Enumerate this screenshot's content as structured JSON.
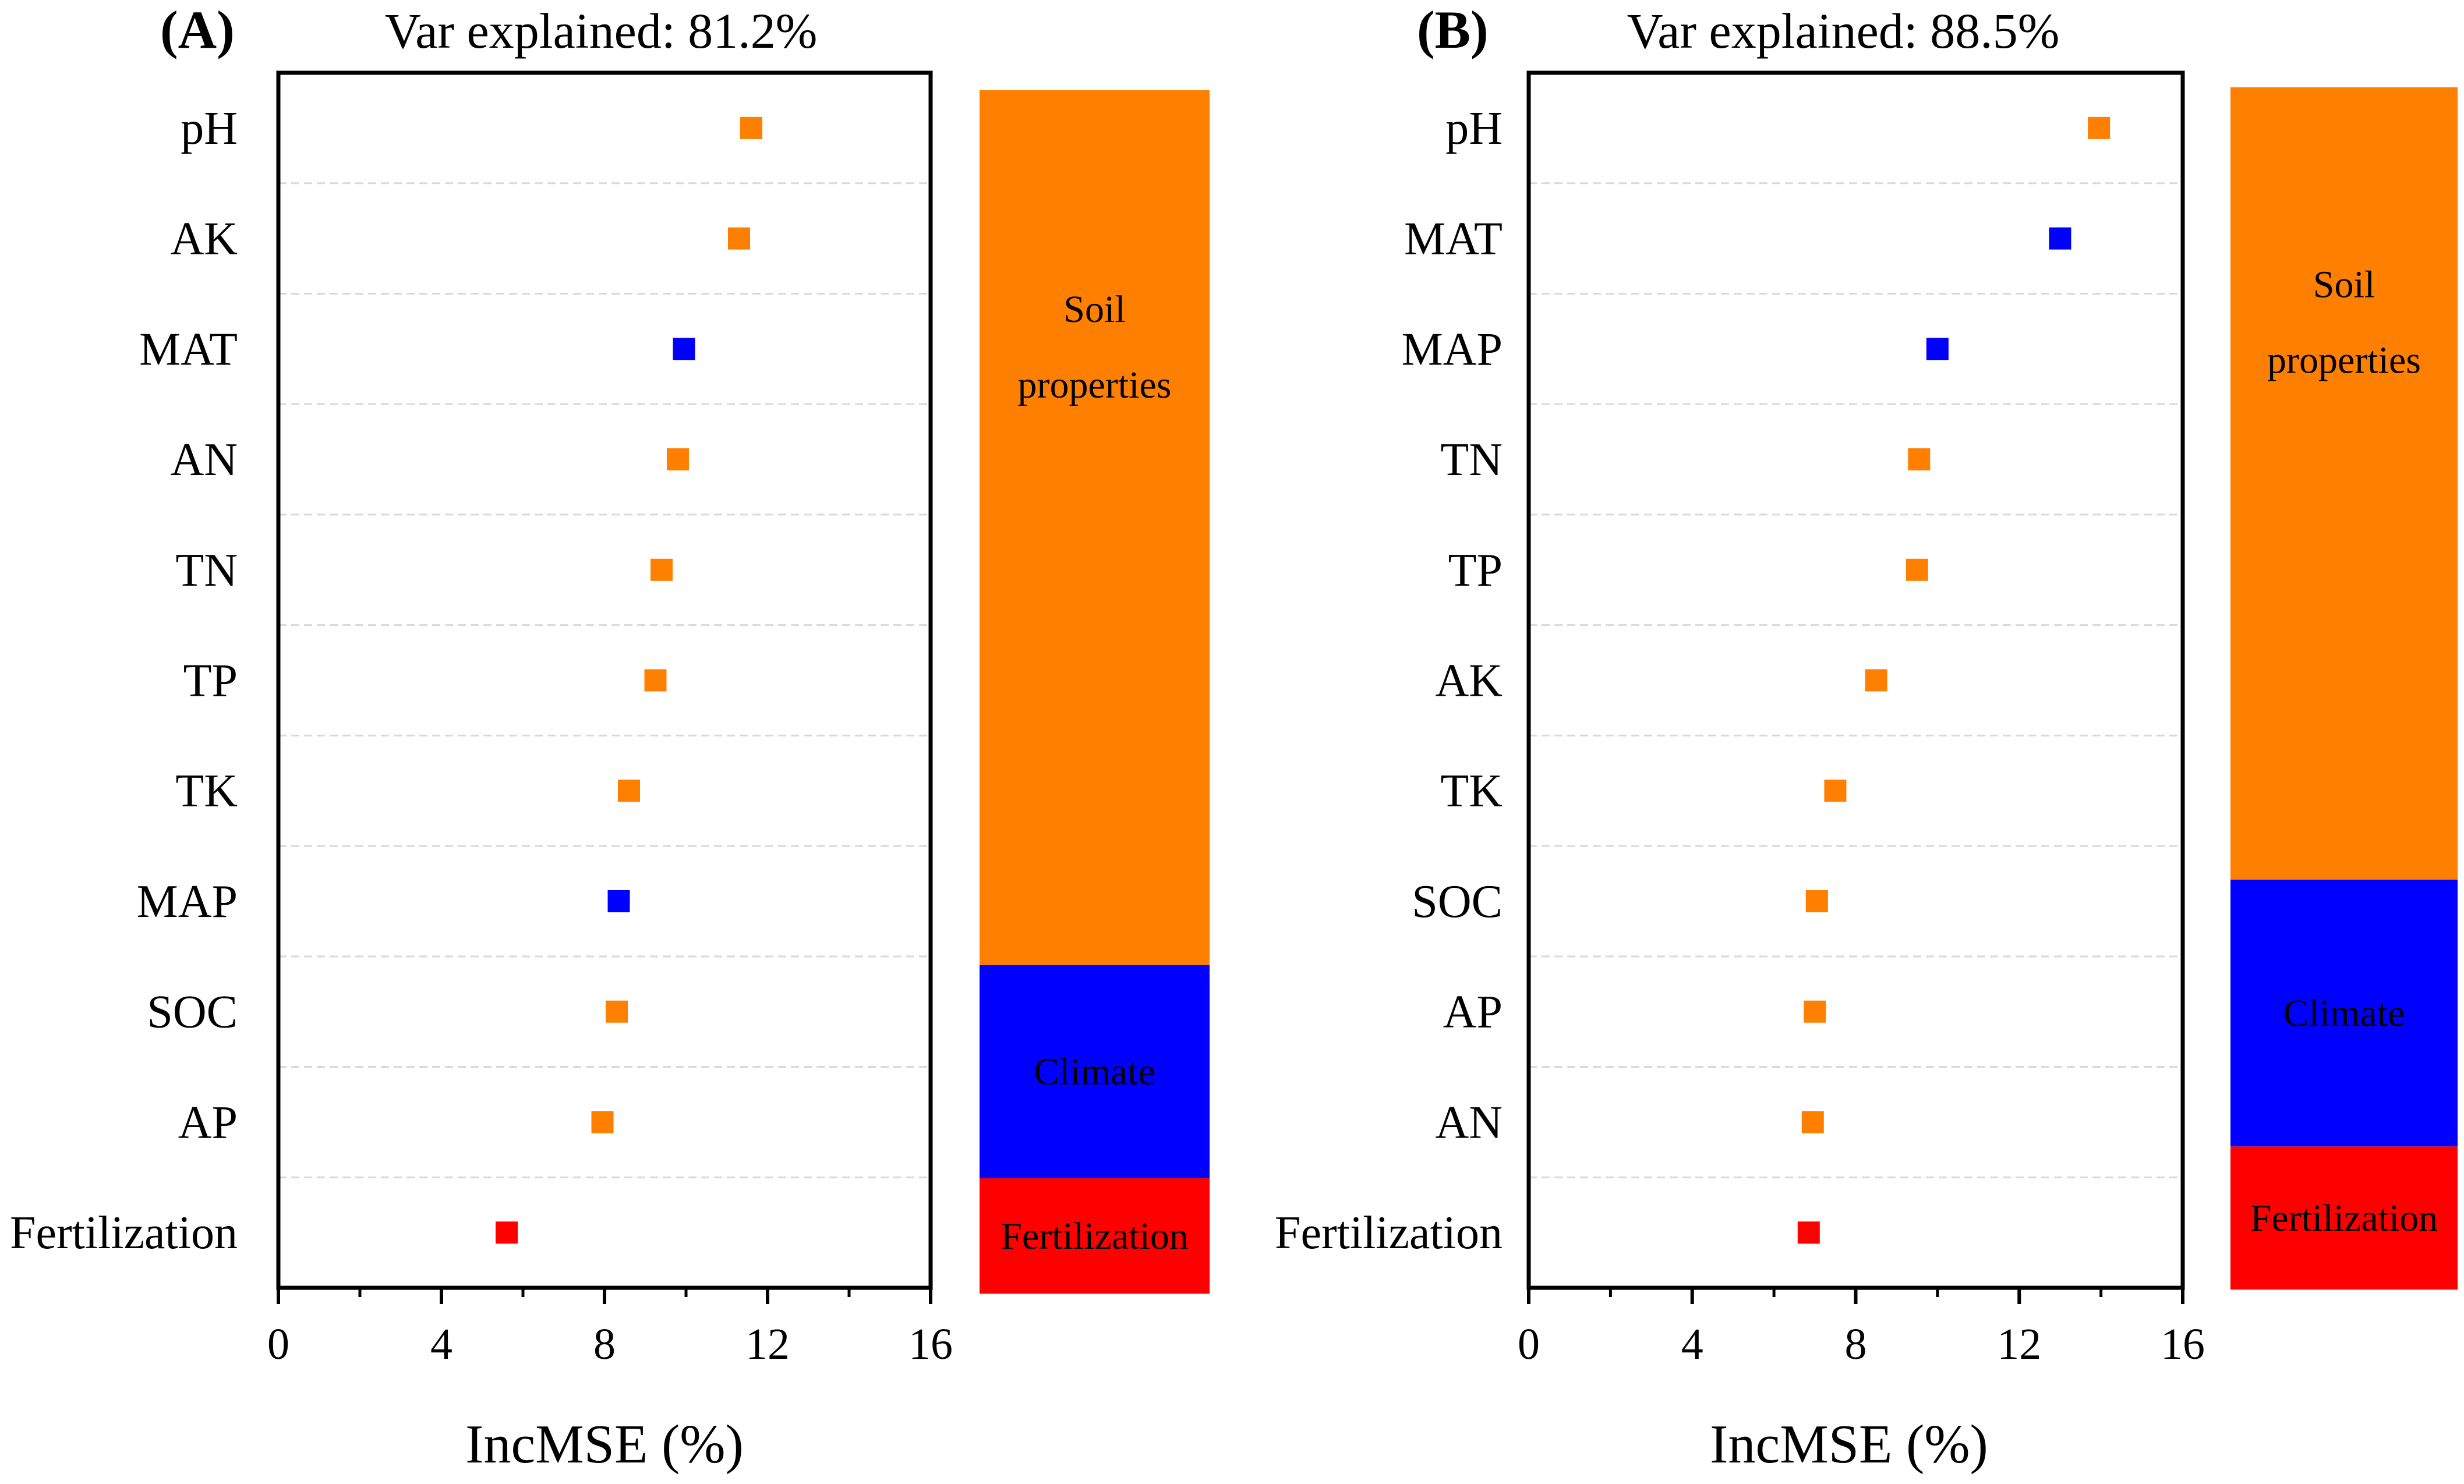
{
  "colors": {
    "soil": "#FF8000",
    "climate": "#0000FF",
    "fertilization": "#FF0000",
    "axis": "#000000",
    "grid": "#D9D9D9"
  },
  "chart_data": [
    {
      "type": "scatter",
      "panel_label": "(A)",
      "title": "Var explained: 81.2%",
      "xlabel": "IncMSE (%)",
      "ylabel": "",
      "xlim": [
        0,
        16
      ],
      "xticks": [
        0,
        4,
        8,
        12,
        16
      ],
      "grid": "horizontal dashed",
      "categories": [
        "pH",
        "AK",
        "MAT",
        "AN",
        "TN",
        "TP",
        "TK",
        "MAP",
        "SOC",
        "AP",
        "Fertilization"
      ],
      "values": [
        11.6,
        11.3,
        9.95,
        9.8,
        9.4,
        9.25,
        8.6,
        8.35,
        8.3,
        7.95,
        5.6
      ],
      "groups": [
        "soil",
        "soil",
        "climate",
        "soil",
        "soil",
        "soil",
        "soil",
        "climate",
        "soil",
        "soil",
        "fertilization"
      ],
      "stack": [
        {
          "key": "soil",
          "label_lines": [
            "Soil",
            "properties"
          ],
          "share": 0.727
        },
        {
          "key": "climate",
          "label_lines": [
            "Climate"
          ],
          "share": 0.177
        },
        {
          "key": "fertilization",
          "label_lines": [
            "Fertilization"
          ],
          "share": 0.096
        }
      ]
    },
    {
      "type": "scatter",
      "panel_label": "(B)",
      "title": "Var explained: 88.5%",
      "xlabel": "IncMSE (%)",
      "ylabel": "",
      "xlim": [
        0,
        16
      ],
      "xticks": [
        0,
        4,
        8,
        12,
        16
      ],
      "grid": "horizontal dashed",
      "categories": [
        "pH",
        "MAT",
        "MAP",
        "TN",
        "TP",
        "AK",
        "TK",
        "SOC",
        "AP",
        "AN",
        "Fertilization"
      ],
      "values": [
        13.95,
        13.0,
        10.0,
        9.55,
        9.5,
        8.5,
        7.5,
        7.05,
        7.0,
        6.95,
        6.85
      ],
      "groups": [
        "soil",
        "climate",
        "climate",
        "soil",
        "soil",
        "soil",
        "soil",
        "soil",
        "soil",
        "soil",
        "fertilization"
      ],
      "stack": [
        {
          "key": "soil",
          "label_lines": [
            "Soil",
            "properties"
          ],
          "share": 0.659
        },
        {
          "key": "climate",
          "label_lines": [
            "Climate"
          ],
          "share": 0.222
        },
        {
          "key": "fertilization",
          "label_lines": [
            "Fertilization"
          ],
          "share": 0.119
        }
      ]
    }
  ]
}
